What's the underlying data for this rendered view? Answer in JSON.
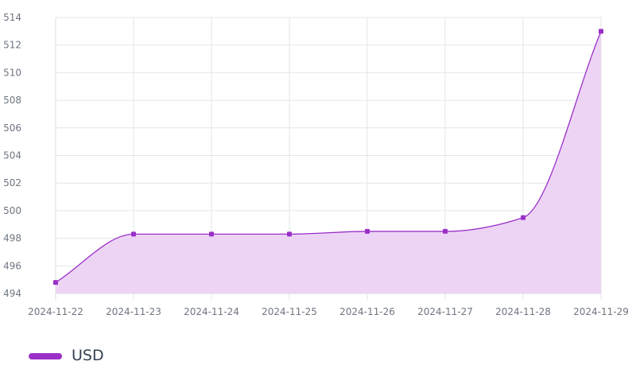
{
  "chart_data": {
    "type": "area",
    "x": [
      "2024-11-22",
      "2024-11-23",
      "2024-11-24",
      "2024-11-25",
      "2024-11-26",
      "2024-11-27",
      "2024-11-28",
      "2024-11-29"
    ],
    "series": [
      {
        "name": "USD",
        "values": [
          494.8,
          498.3,
          498.3,
          498.3,
          498.5,
          498.5,
          499.5,
          513
        ]
      }
    ],
    "ylim": [
      494,
      514
    ],
    "yticks": [
      494,
      496,
      498,
      500,
      502,
      504,
      506,
      508,
      510,
      512,
      514
    ],
    "grid": true,
    "legend": "bottom-left",
    "colors": {
      "line": "#9b30c8",
      "fill": "#ecd2f4",
      "point": "#9b30c8",
      "grid": "#e3e6ea",
      "axis": "#d8dce1"
    }
  }
}
